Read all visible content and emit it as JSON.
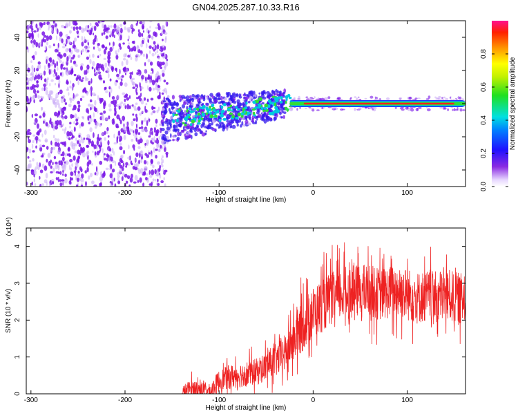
{
  "title": "GN04.2025.287.10.33.R16",
  "colors": {
    "signal_line": "#ee2222",
    "scatter_purple": "#7a18e8",
    "scatter_light": "#c9a9f5",
    "band_colors": [
      "#2233ff",
      "#00c8e0",
      "#33dd33",
      "#ff2020"
    ]
  },
  "colorbar": {
    "label": "Normalized spectral amplitude",
    "ticks": [
      "0.0",
      "0.2",
      "0.4",
      "0.6",
      "0.8"
    ],
    "tick_values": [
      0.0,
      0.2,
      0.4,
      0.6,
      0.8
    ],
    "range": [
      0,
      1
    ],
    "colormap": "rainbow (white-violet-blue-cyan-green-yellow-orange-red-pink)"
  },
  "chart_data": [
    {
      "type": "heatmap",
      "title": "",
      "xlabel": "Height of straight line (km)",
      "ylabel": "Frequency (Hz)",
      "xlim": [
        -305,
        162
      ],
      "ylim": [
        -50,
        50
      ],
      "xticks": [
        -300,
        -200,
        -100,
        0,
        100
      ],
      "yticks": [
        -40,
        -20,
        0,
        20,
        40
      ],
      "grid": false,
      "regions": [
        {
          "description": "noise",
          "x": [
            -300,
            -155
          ],
          "y": [
            -50,
            50
          ],
          "amplitude": 0.08
        },
        {
          "description": "broad signal",
          "x": [
            -160,
            -30
          ],
          "y_center_start": -10,
          "y_center_end": 0,
          "amplitude": 0.25
        },
        {
          "description": "narrow carrier line",
          "x": [
            -25,
            162
          ],
          "y_center": 0,
          "amplitude": 0.95
        }
      ]
    },
    {
      "type": "line",
      "title": "",
      "xlabel": "Height of straight line (km)",
      "ylabel": "SNR (10 * v/v)",
      "multiplier": "(x10⁴)",
      "xlim": [
        -305,
        162
      ],
      "ylim": [
        0,
        4.5
      ],
      "xticks": [
        -300,
        -200,
        -100,
        0,
        100
      ],
      "yticks": [
        0,
        1,
        2,
        3,
        4
      ],
      "grid": false,
      "series": [
        {
          "x": [
            -305,
            -140,
            -130,
            -120,
            -110,
            -100,
            -90,
            -80,
            -70,
            -60,
            -50,
            -40,
            -30,
            -20,
            -10,
            0,
            10,
            20,
            30,
            40,
            50,
            60,
            70,
            80,
            90,
            100,
            110,
            120,
            130,
            140,
            150,
            162
          ],
          "values": [
            0,
            0,
            0.15,
            0.12,
            0.05,
            0.35,
            0.45,
            0.5,
            0.55,
            0.6,
            0.75,
            0.9,
            1.1,
            1.5,
            1.9,
            2.2,
            2.4,
            2.6,
            2.7,
            2.75,
            2.8,
            2.8,
            2.7,
            2.75,
            2.8,
            2.7,
            2.6,
            2.65,
            2.6,
            2.7,
            2.6,
            2.55
          ]
        }
      ]
    }
  ]
}
